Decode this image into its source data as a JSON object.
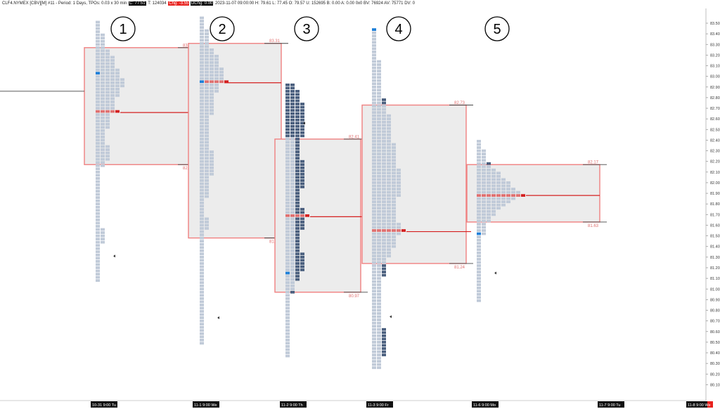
{
  "header": {
    "symbol": "CLF4.NYMEX [CBV][M] #11 - Period: 1 Days, TPOs: 0.03 x 30 min",
    "c_box": "C: 77.51",
    "text_mid": "T: 124034",
    "chg_box": "Chg: -3.55",
    "dchg_box": "DChg: 0.00",
    "text_tail": "2023-11-07 09:00:00 H: 79.61 L: 77.45 O: 79.57 U: 152695 B: 0.00 A: 0.00 0x0 BV: 76924 AV: 75771 DV: 0"
  },
  "chart_data": {
    "type": "market-profile",
    "y_axis": {
      "min": 80.1,
      "max": 83.6,
      "tick_step": 0.1,
      "tick_labels": [
        "83.50",
        "83.40",
        "83.30",
        "83.20",
        "83.10",
        "83.00",
        "82.90",
        "82.80",
        "82.70",
        "82.60",
        "82.50",
        "82.40",
        "82.30",
        "82.20",
        "82.10",
        "82.00",
        "81.90",
        "81.80",
        "81.70",
        "81.60",
        "81.50",
        "81.40",
        "81.30",
        "81.20",
        "81.10",
        "81.00",
        "80.90",
        "80.80",
        "80.70",
        "80.60",
        "80.50",
        "80.40",
        "80.30",
        "80.20",
        "80.10"
      ],
      "side": "right"
    },
    "x_axis": {
      "labels": [
        "10-31 9:00 Tu",
        "11-1 9:00 We",
        "11-2 9:00 Th",
        "11-3 9:00 Fr",
        "11-6 9:00 Mo",
        "11-7 9:00 Tu",
        "11-8 9:00 We"
      ]
    },
    "profiles": [
      {
        "number": "1",
        "date_label": "10-31 9:00 Tu",
        "value_area_high": 83.27,
        "value_area_low": 82.17,
        "value_area_high_label": "83.27",
        "value_area_low_label": "82.17",
        "poc": 82.66,
        "open": 83.04,
        "close": 81.31,
        "high": 83.51,
        "low": 81.07,
        "shape": [
          [
            83.51,
            1
          ],
          [
            83.29,
            2
          ],
          [
            83.24,
            3
          ],
          [
            83.16,
            4
          ],
          [
            83.01,
            5
          ],
          [
            82.93,
            6
          ],
          [
            82.84,
            5
          ],
          [
            82.76,
            4
          ],
          [
            82.55,
            3
          ],
          [
            82.44,
            2
          ],
          [
            82.24,
            3
          ],
          [
            82.17,
            2
          ],
          [
            82.09,
            1
          ],
          [
            81.71,
            1
          ],
          [
            81.45,
            2
          ],
          [
            81.37,
            1
          ],
          [
            81.07,
            1
          ]
        ]
      },
      {
        "number": "2",
        "date_label": "11-1 9:00 We",
        "value_area_high": 83.31,
        "value_area_low": 81.48,
        "value_area_high_label": "83.31",
        "value_area_low_label": "81.48",
        "poc": 82.94,
        "open": 82.94,
        "close": 80.73,
        "high": 83.55,
        "low": 80.48,
        "shape": [
          [
            83.55,
            1
          ],
          [
            83.31,
            2
          ],
          [
            83.24,
            3
          ],
          [
            83.16,
            4
          ],
          [
            83.01,
            5
          ],
          [
            82.94,
            4
          ],
          [
            82.74,
            3
          ],
          [
            82.51,
            2
          ],
          [
            82.12,
            3
          ],
          [
            81.98,
            2
          ],
          [
            81.74,
            1
          ],
          [
            81.63,
            2
          ],
          [
            81.48,
            1
          ],
          [
            81.18,
            1
          ],
          [
            80.9,
            1
          ],
          [
            80.48,
            1
          ]
        ]
      },
      {
        "number": "3",
        "date_label": "11-2 9:00 Th",
        "value_area_high": 82.41,
        "value_area_low": 80.97,
        "value_area_high_label": "82.41",
        "value_area_low_label": "80.97",
        "poc": 81.68,
        "open": 81.16,
        "close": 82.56,
        "high": 82.92,
        "low": 80.36,
        "shape": [
          [
            82.92,
            2
          ],
          [
            82.84,
            3
          ],
          [
            82.66,
            4
          ],
          [
            82.51,
            4
          ],
          [
            82.36,
            3
          ],
          [
            82.06,
            4
          ],
          [
            81.83,
            3
          ],
          [
            81.68,
            4
          ],
          [
            81.43,
            3
          ],
          [
            81.23,
            4
          ],
          [
            81.01,
            2
          ],
          [
            80.91,
            1
          ],
          [
            80.36,
            1
          ]
        ]
      },
      {
        "number": "4",
        "date_label": "11-3 9:00 Fr",
        "value_area_high": 82.73,
        "value_area_low": 81.24,
        "value_area_high_label": "82.73",
        "value_area_low_label": "81.24",
        "poc": 81.54,
        "open": 83.44,
        "close": 80.74,
        "high": 83.44,
        "low": 80.24,
        "shape": [
          [
            83.44,
            1
          ],
          [
            82.84,
            2
          ],
          [
            82.76,
            3
          ],
          [
            82.51,
            4
          ],
          [
            82.26,
            5
          ],
          [
            81.98,
            6
          ],
          [
            81.73,
            5
          ],
          [
            81.54,
            6
          ],
          [
            81.44,
            5
          ],
          [
            81.24,
            3
          ],
          [
            81.01,
            2
          ],
          [
            80.76,
            2
          ],
          [
            80.51,
            3
          ],
          [
            80.24,
            2
          ]
        ]
      },
      {
        "number": "5",
        "date_label": "11-6 9:00 Mo",
        "value_area_high": 82.17,
        "value_area_low": 81.63,
        "value_area_high_label": "82.17",
        "value_area_low_label": "81.63",
        "poc": 81.88,
        "open": 81.53,
        "close": 81.15,
        "high": 82.39,
        "low": 80.89,
        "shape": [
          [
            82.39,
            1
          ],
          [
            82.24,
            2
          ],
          [
            82.14,
            3
          ],
          [
            82.04,
            6
          ],
          [
            81.94,
            8
          ],
          [
            81.88,
            9
          ],
          [
            81.76,
            5
          ],
          [
            81.66,
            3
          ],
          [
            81.56,
            2
          ],
          [
            81.46,
            1
          ],
          [
            80.89,
            1
          ]
        ]
      }
    ],
    "colors": {
      "light_block": "#c0cad8",
      "dark_block": "#4a5f7e",
      "poc_block": "#e07070",
      "poc_center": "#d41f1f",
      "open_block": "#1e7fd8",
      "value_area_border": "#f08080",
      "value_area_fill": "#ececec",
      "va_label": "#e06f6f"
    }
  }
}
